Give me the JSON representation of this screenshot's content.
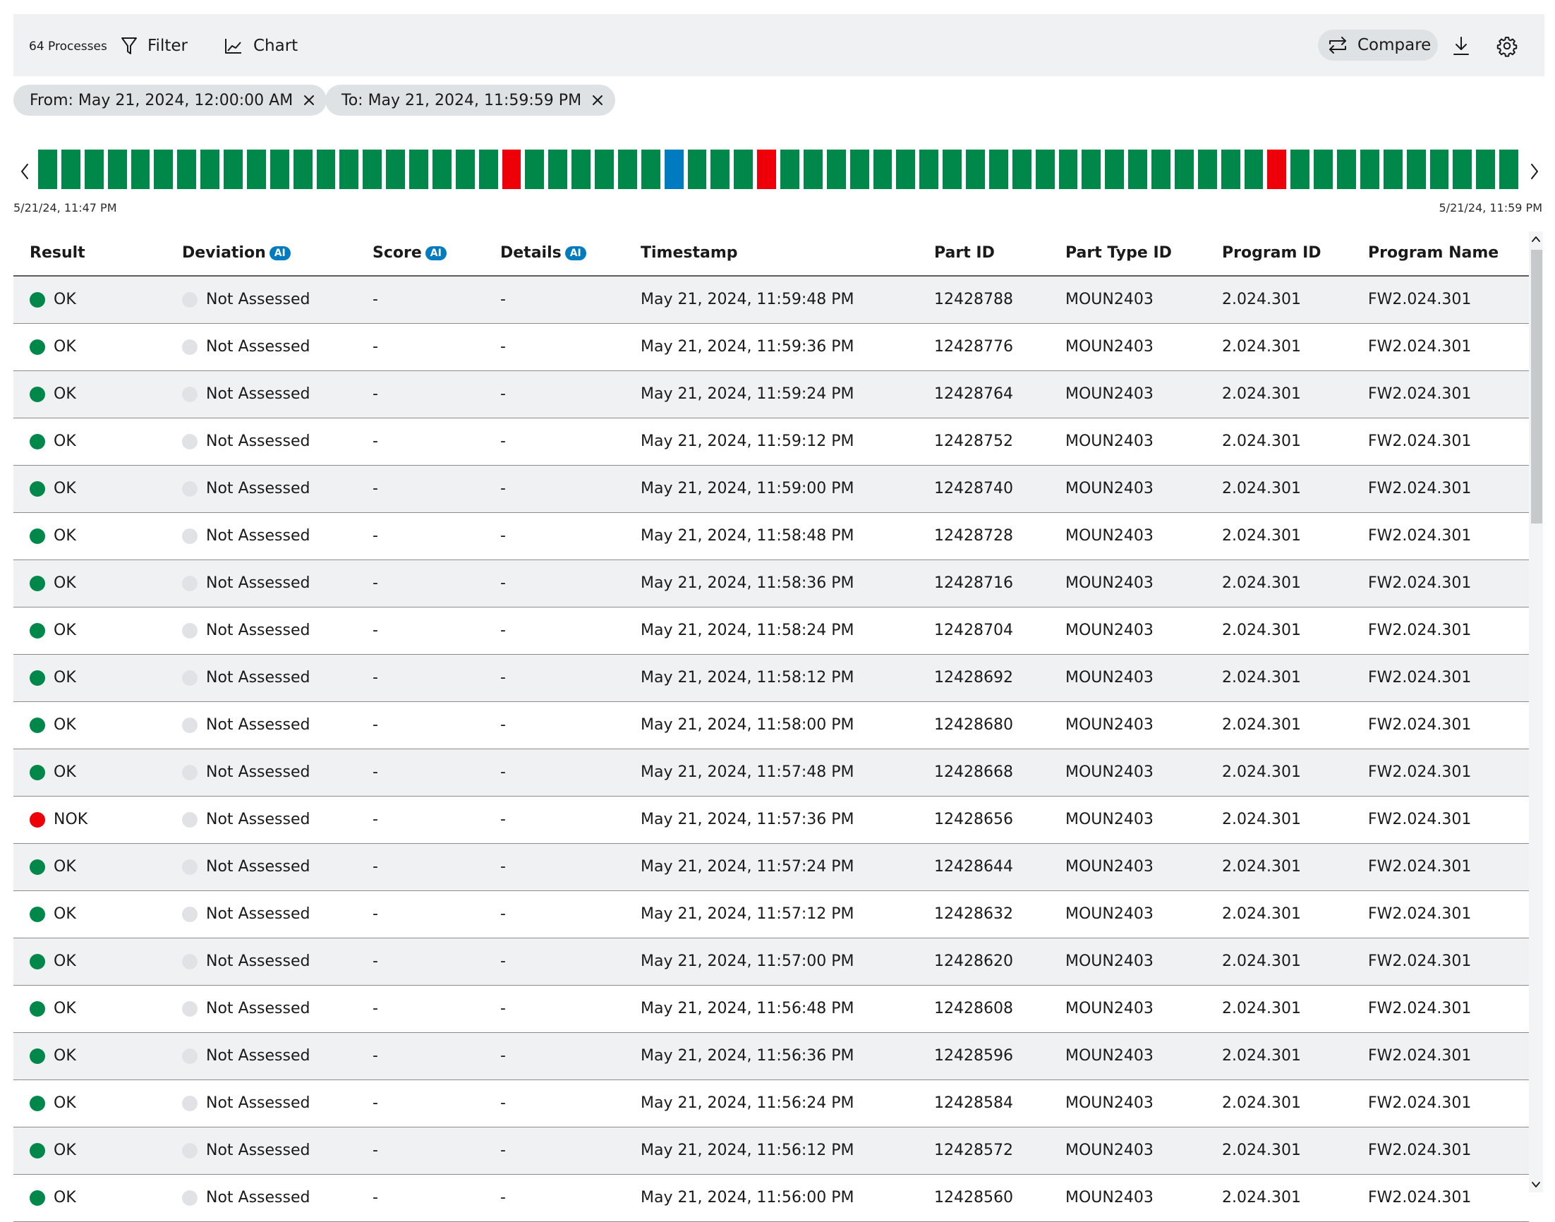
{
  "toolbar": {
    "process_count": "64 Processes",
    "filter_label": "Filter",
    "chart_label": "Chart",
    "compare_label": "Compare",
    "icons": [
      "filter-icon",
      "chart-icon",
      "compare-icon",
      "download-icon",
      "gear-icon"
    ]
  },
  "filters": {
    "from": "From: May 21, 2024, 12:00:00 AM",
    "to": "To: May 21, 2024, 11:59:59 PM"
  },
  "timeline": {
    "start_label": "5/21/24, 11:47 PM",
    "end_label": "5/21/24, 11:59 PM",
    "colors": {
      "ok": "#00884a",
      "nok": "#ed0007",
      "selected": "#007bc0"
    },
    "bars": [
      "ok",
      "ok",
      "ok",
      "ok",
      "ok",
      "ok",
      "ok",
      "ok",
      "ok",
      "ok",
      "ok",
      "ok",
      "ok",
      "ok",
      "ok",
      "ok",
      "ok",
      "ok",
      "ok",
      "ok",
      "nok",
      "ok",
      "ok",
      "ok",
      "ok",
      "ok",
      "ok",
      "selected",
      "ok",
      "ok",
      "ok",
      "nok",
      "ok",
      "ok",
      "ok",
      "ok",
      "ok",
      "ok",
      "ok",
      "ok",
      "ok",
      "ok",
      "ok",
      "ok",
      "ok",
      "ok",
      "ok",
      "ok",
      "ok",
      "ok",
      "ok",
      "ok",
      "ok",
      "nok",
      "ok",
      "ok",
      "ok",
      "ok",
      "ok",
      "ok",
      "ok",
      "ok",
      "ok",
      "ok"
    ]
  },
  "table": {
    "columns": [
      {
        "label": "Result",
        "ai": ""
      },
      {
        "label": "Deviation",
        "ai": "AI"
      },
      {
        "label": "Score",
        "ai": "AI"
      },
      {
        "label": "Details",
        "ai": "AI"
      },
      {
        "label": "Timestamp",
        "ai": ""
      },
      {
        "label": "Part ID",
        "ai": ""
      },
      {
        "label": "Part Type ID",
        "ai": ""
      },
      {
        "label": "Program ID",
        "ai": ""
      },
      {
        "label": "Program Name",
        "ai": ""
      }
    ],
    "rows": [
      {
        "result": "OK",
        "status": "ok",
        "deviation": "Not Assessed",
        "score": "-",
        "details": "-",
        "timestamp": "May 21, 2024, 11:59:48 PM",
        "part_id": "12428788",
        "part_type_id": "MOUN2403",
        "program_id": "2.024.301",
        "program_name": "FW2.024.301"
      },
      {
        "result": "OK",
        "status": "ok",
        "deviation": "Not Assessed",
        "score": "-",
        "details": "-",
        "timestamp": "May 21, 2024, 11:59:36 PM",
        "part_id": "12428776",
        "part_type_id": "MOUN2403",
        "program_id": "2.024.301",
        "program_name": "FW2.024.301"
      },
      {
        "result": "OK",
        "status": "ok",
        "deviation": "Not Assessed",
        "score": "-",
        "details": "-",
        "timestamp": "May 21, 2024, 11:59:24 PM",
        "part_id": "12428764",
        "part_type_id": "MOUN2403",
        "program_id": "2.024.301",
        "program_name": "FW2.024.301"
      },
      {
        "result": "OK",
        "status": "ok",
        "deviation": "Not Assessed",
        "score": "-",
        "details": "-",
        "timestamp": "May 21, 2024, 11:59:12 PM",
        "part_id": "12428752",
        "part_type_id": "MOUN2403",
        "program_id": "2.024.301",
        "program_name": "FW2.024.301"
      },
      {
        "result": "OK",
        "status": "ok",
        "deviation": "Not Assessed",
        "score": "-",
        "details": "-",
        "timestamp": "May 21, 2024, 11:59:00 PM",
        "part_id": "12428740",
        "part_type_id": "MOUN2403",
        "program_id": "2.024.301",
        "program_name": "FW2.024.301"
      },
      {
        "result": "OK",
        "status": "ok",
        "deviation": "Not Assessed",
        "score": "-",
        "details": "-",
        "timestamp": "May 21, 2024, 11:58:48 PM",
        "part_id": "12428728",
        "part_type_id": "MOUN2403",
        "program_id": "2.024.301",
        "program_name": "FW2.024.301"
      },
      {
        "result": "OK",
        "status": "ok",
        "deviation": "Not Assessed",
        "score": "-",
        "details": "-",
        "timestamp": "May 21, 2024, 11:58:36 PM",
        "part_id": "12428716",
        "part_type_id": "MOUN2403",
        "program_id": "2.024.301",
        "program_name": "FW2.024.301"
      },
      {
        "result": "OK",
        "status": "ok",
        "deviation": "Not Assessed",
        "score": "-",
        "details": "-",
        "timestamp": "May 21, 2024, 11:58:24 PM",
        "part_id": "12428704",
        "part_type_id": "MOUN2403",
        "program_id": "2.024.301",
        "program_name": "FW2.024.301"
      },
      {
        "result": "OK",
        "status": "ok",
        "deviation": "Not Assessed",
        "score": "-",
        "details": "-",
        "timestamp": "May 21, 2024, 11:58:12 PM",
        "part_id": "12428692",
        "part_type_id": "MOUN2403",
        "program_id": "2.024.301",
        "program_name": "FW2.024.301"
      },
      {
        "result": "OK",
        "status": "ok",
        "deviation": "Not Assessed",
        "score": "-",
        "details": "-",
        "timestamp": "May 21, 2024, 11:58:00 PM",
        "part_id": "12428680",
        "part_type_id": "MOUN2403",
        "program_id": "2.024.301",
        "program_name": "FW2.024.301"
      },
      {
        "result": "OK",
        "status": "ok",
        "deviation": "Not Assessed",
        "score": "-",
        "details": "-",
        "timestamp": "May 21, 2024, 11:57:48 PM",
        "part_id": "12428668",
        "part_type_id": "MOUN2403",
        "program_id": "2.024.301",
        "program_name": "FW2.024.301"
      },
      {
        "result": "NOK",
        "status": "nok",
        "deviation": "Not Assessed",
        "score": "-",
        "details": "-",
        "timestamp": "May 21, 2024, 11:57:36 PM",
        "part_id": "12428656",
        "part_type_id": "MOUN2403",
        "program_id": "2.024.301",
        "program_name": "FW2.024.301"
      },
      {
        "result": "OK",
        "status": "ok",
        "deviation": "Not Assessed",
        "score": "-",
        "details": "-",
        "timestamp": "May 21, 2024, 11:57:24 PM",
        "part_id": "12428644",
        "part_type_id": "MOUN2403",
        "program_id": "2.024.301",
        "program_name": "FW2.024.301"
      },
      {
        "result": "OK",
        "status": "ok",
        "deviation": "Not Assessed",
        "score": "-",
        "details": "-",
        "timestamp": "May 21, 2024, 11:57:12 PM",
        "part_id": "12428632",
        "part_type_id": "MOUN2403",
        "program_id": "2.024.301",
        "program_name": "FW2.024.301"
      },
      {
        "result": "OK",
        "status": "ok",
        "deviation": "Not Assessed",
        "score": "-",
        "details": "-",
        "timestamp": "May 21, 2024, 11:57:00 PM",
        "part_id": "12428620",
        "part_type_id": "MOUN2403",
        "program_id": "2.024.301",
        "program_name": "FW2.024.301"
      },
      {
        "result": "OK",
        "status": "ok",
        "deviation": "Not Assessed",
        "score": "-",
        "details": "-",
        "timestamp": "May 21, 2024, 11:56:48 PM",
        "part_id": "12428608",
        "part_type_id": "MOUN2403",
        "program_id": "2.024.301",
        "program_name": "FW2.024.301"
      },
      {
        "result": "OK",
        "status": "ok",
        "deviation": "Not Assessed",
        "score": "-",
        "details": "-",
        "timestamp": "May 21, 2024, 11:56:36 PM",
        "part_id": "12428596",
        "part_type_id": "MOUN2403",
        "program_id": "2.024.301",
        "program_name": "FW2.024.301"
      },
      {
        "result": "OK",
        "status": "ok",
        "deviation": "Not Assessed",
        "score": "-",
        "details": "-",
        "timestamp": "May 21, 2024, 11:56:24 PM",
        "part_id": "12428584",
        "part_type_id": "MOUN2403",
        "program_id": "2.024.301",
        "program_name": "FW2.024.301"
      },
      {
        "result": "OK",
        "status": "ok",
        "deviation": "Not Assessed",
        "score": "-",
        "details": "-",
        "timestamp": "May 21, 2024, 11:56:12 PM",
        "part_id": "12428572",
        "part_type_id": "MOUN2403",
        "program_id": "2.024.301",
        "program_name": "FW2.024.301"
      },
      {
        "result": "OK",
        "status": "ok",
        "deviation": "Not Assessed",
        "score": "-",
        "details": "-",
        "timestamp": "May 21, 2024, 11:56:00 PM",
        "part_id": "12428560",
        "part_type_id": "MOUN2403",
        "program_id": "2.024.301",
        "program_name": "FW2.024.301"
      }
    ]
  }
}
